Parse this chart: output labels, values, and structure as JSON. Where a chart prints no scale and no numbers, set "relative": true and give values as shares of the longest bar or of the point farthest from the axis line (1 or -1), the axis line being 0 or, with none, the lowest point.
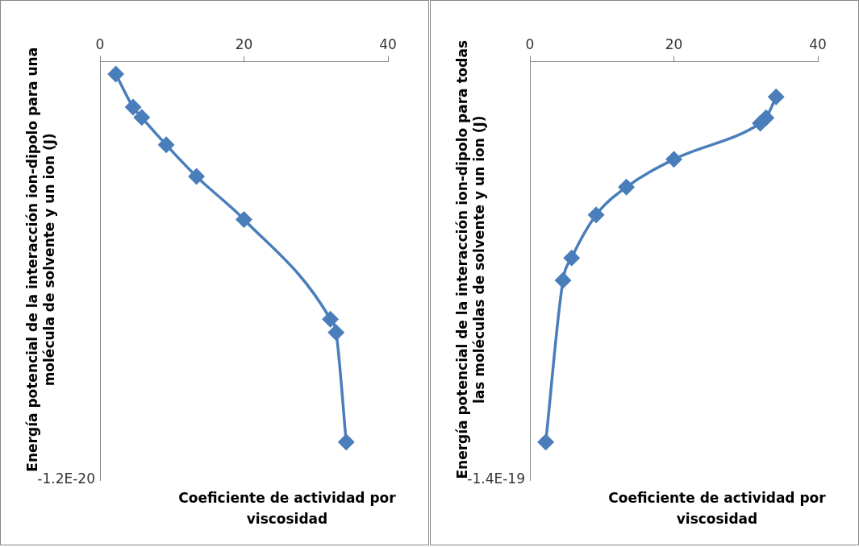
{
  "chart_data": [
    {
      "type": "line",
      "xlabel": "Coeficiente de actividad por viscosidad",
      "ylabel": "Energía potencial de la interacción ion-dipolo para una molécula de solvente y un ion (J)",
      "x": [
        2.2,
        4.6,
        5.8,
        9.2,
        13.4,
        20,
        32,
        32.8,
        34.2
      ],
      "series": [
        {
          "color": "#4a7ebb",
          "values": [
            -0.033,
            -0.12,
            -0.147,
            -0.219,
            -0.302,
            -0.415,
            -0.677,
            -0.712,
            -1
          ]
        }
      ],
      "relative": true,
      "annotations": [
        "-1.2E-20"
      ],
      "xlim": [
        0,
        40
      ],
      "xticks": [
        0,
        20,
        40
      ],
      "grid": false,
      "legend": false,
      "marker": "diamond",
      "line_style": "solid"
    },
    {
      "type": "line",
      "xlabel": "Coeficiente de actividad por viscosidad",
      "ylabel": "Energía potencial de la interacción ion-dipolo para todas las moléculas de solvente y un ion (J)",
      "x": [
        2.2,
        4.6,
        5.8,
        9.2,
        13.4,
        20,
        32,
        32.8,
        34.2
      ],
      "series": [
        {
          "color": "#4a7ebb",
          "values": [
            -1,
            -0.575,
            -0.516,
            -0.403,
            -0.33,
            -0.257,
            -0.162,
            -0.148,
            -0.093
          ]
        }
      ],
      "relative": true,
      "annotations": [
        "-1.4E-19"
      ],
      "xlim": [
        0,
        40
      ],
      "xticks": [
        0,
        20,
        40
      ],
      "grid": false,
      "legend": false,
      "marker": "diamond",
      "line_style": "solid"
    }
  ]
}
